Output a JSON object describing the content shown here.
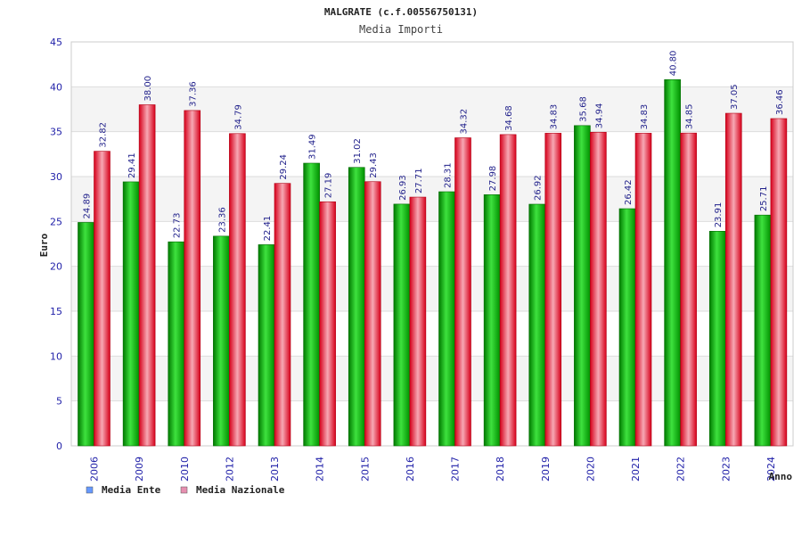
{
  "chart_data": {
    "type": "bar",
    "title": "MALGRATE (c.f.00556750131)",
    "subtitle": "Media Importi",
    "xlabel": "Anno",
    "ylabel": "Euro",
    "ylim": [
      0,
      45
    ],
    "yticks": [
      0,
      5,
      10,
      15,
      20,
      25,
      30,
      35,
      40,
      45
    ],
    "categories": [
      "2006",
      "2009",
      "2010",
      "2012",
      "2013",
      "2014",
      "2015",
      "2016",
      "2017",
      "2018",
      "2019",
      "2020",
      "2021",
      "2022",
      "2023",
      "2024"
    ],
    "series": [
      {
        "name": "Media Ente",
        "color": "#00c000",
        "legend_color": "#6699ff",
        "values": [
          24.89,
          29.41,
          22.73,
          23.36,
          22.41,
          31.49,
          31.02,
          26.93,
          28.31,
          27.98,
          26.92,
          35.68,
          26.42,
          40.8,
          23.91,
          25.71
        ],
        "labels": [
          "24.89",
          "29.41",
          "22.73",
          "23.36",
          "22.41",
          "31.49",
          "31.02",
          "26.93",
          "28.31",
          "27.98",
          "26.92",
          "35.68",
          "26.42",
          "40.80",
          "23.91",
          "25.71"
        ]
      },
      {
        "name": "Media Nazionale",
        "color": "#e8001c",
        "legend_color": "#e68fb0",
        "values": [
          32.82,
          38.0,
          37.36,
          34.79,
          29.24,
          27.19,
          29.43,
          27.71,
          34.32,
          34.68,
          34.83,
          34.94,
          34.83,
          34.85,
          37.05,
          36.46
        ],
        "labels": [
          "32.82",
          "38.00",
          "37.36",
          "34.79",
          "29.24",
          "27.19",
          "29.43",
          "27.71",
          "34.32",
          "34.68",
          "34.83",
          "34.94",
          "34.83",
          "34.85",
          "37.05",
          "36.46"
        ]
      }
    ],
    "grid": true,
    "legend": "bottom-left"
  }
}
